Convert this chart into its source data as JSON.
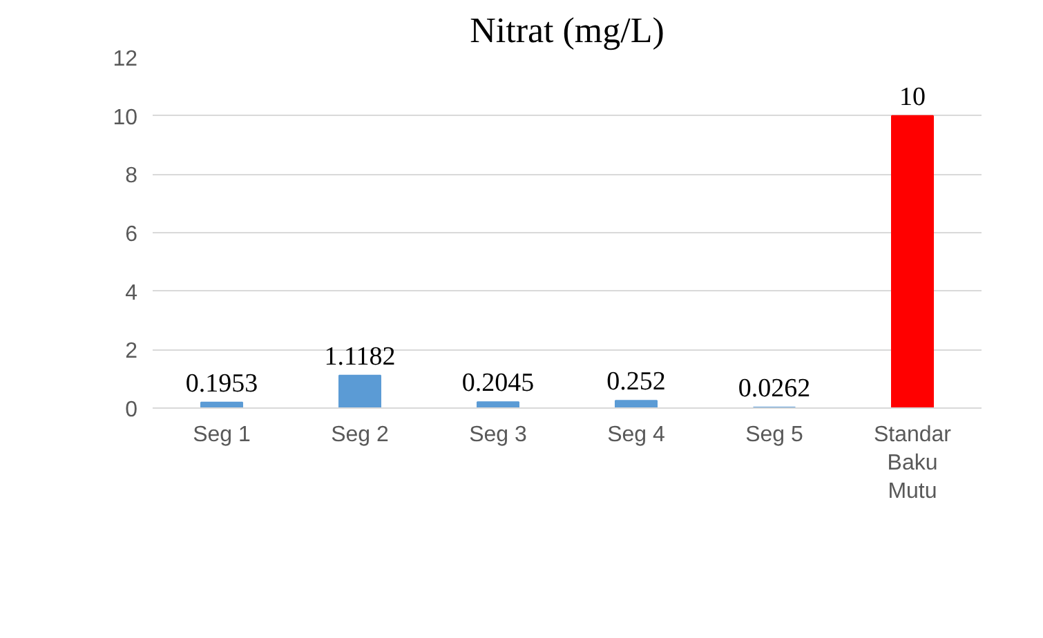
{
  "chart_data": {
    "type": "bar",
    "title": "Nitrat (mg/L)",
    "categories": [
      "Seg 1",
      "Seg 2",
      "Seg 3",
      "Seg 4",
      "Seg 5",
      "Standar Baku Mutu"
    ],
    "values": [
      0.1953,
      1.1182,
      0.2045,
      0.252,
      0.0262,
      10
    ],
    "colors": [
      "#5b9bd5",
      "#5b9bd5",
      "#5b9bd5",
      "#5b9bd5",
      "#5b9bd5",
      "#ff0000"
    ],
    "ylim": [
      0,
      12
    ],
    "yticks": [
      0,
      2,
      4,
      6,
      8,
      10,
      12
    ],
    "grid": "y",
    "data_labels": true
  }
}
